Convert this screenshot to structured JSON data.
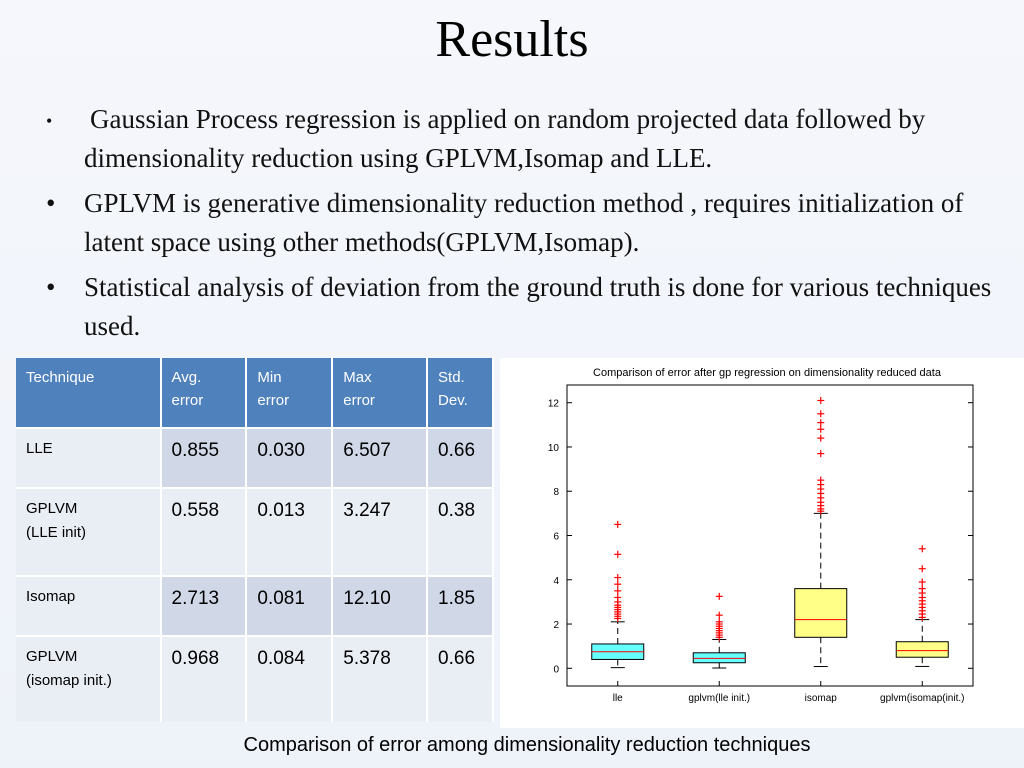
{
  "slide": {
    "title": "Results",
    "bullets": [
      "Gaussian Process regression is applied on random projected data followed by dimensionality reduction using GPLVM,Isomap and LLE.",
      "GPLVM is generative dimensionality reduction method , requires initialization of latent space using other methods(GPLVM,Isomap).",
      "Statistical analysis of deviation from the ground truth is done for various techniques used."
    ],
    "bullet_glyph": "•",
    "caption": "Comparison of error among dimensionality reduction techniques"
  },
  "table": {
    "headers": [
      [
        "Technique"
      ],
      [
        "Avg.",
        "error"
      ],
      [
        "Min",
        "error"
      ],
      [
        "Max",
        "error"
      ],
      [
        "Std.",
        "Dev."
      ]
    ],
    "rows": [
      {
        "technique": [
          "LLE"
        ],
        "avg": "0.855",
        "min": "0.030",
        "max": "6.507",
        "std": "0.66"
      },
      {
        "technique": [
          "GPLVM",
          "(LLE init)"
        ],
        "avg": "0.558",
        "min": "0.013",
        "max": "3.247",
        "std": "0.38"
      },
      {
        "technique": [
          "Isomap"
        ],
        "avg": "2.713",
        "min": "0.081",
        "max": "12.10",
        "std": "1.85"
      },
      {
        "technique": [
          "GPLVM",
          "(isomap init.)"
        ],
        "avg": "0.968",
        "min": "0.084",
        "max": "5.378",
        "std": "0.66"
      }
    ],
    "header_color": "#4f81bd"
  },
  "chart_data": {
    "type": "box",
    "title": "Comparison of error after gp regression on dimensionality reduced data",
    "xlabel": "",
    "ylabel": "",
    "ylim": [
      -0.8,
      12.8
    ],
    "yticks": [
      0,
      2,
      4,
      6,
      8,
      10,
      12
    ],
    "categories": [
      "lle",
      "gplvm(lle init.)",
      "isomap",
      "gplvm(isomap(init.)"
    ],
    "boxes": [
      {
        "label": "lle",
        "min": 0.03,
        "q1": 0.4,
        "median": 0.75,
        "q3": 1.1,
        "whisker_high": 2.1,
        "outliers": [
          2.25,
          2.35,
          2.45,
          2.55,
          2.65,
          2.75,
          2.85,
          3.0,
          3.2,
          3.5,
          3.8,
          4.1,
          5.15,
          6.5
        ],
        "color": "#66ffff"
      },
      {
        "label": "gplvm(lle init.)",
        "min": 0.013,
        "q1": 0.25,
        "median": 0.45,
        "q3": 0.7,
        "whisker_high": 1.3,
        "outliers": [
          1.4,
          1.5,
          1.6,
          1.7,
          1.8,
          1.9,
          2.0,
          2.1,
          2.4,
          3.25
        ],
        "color": "#66ffff"
      },
      {
        "label": "isomap",
        "min": 0.08,
        "q1": 1.4,
        "median": 2.2,
        "q3": 3.6,
        "whisker_high": 7.0,
        "outliers": [
          7.1,
          7.2,
          7.35,
          7.5,
          7.7,
          7.9,
          8.1,
          8.3,
          8.5,
          9.7,
          10.4,
          10.8,
          11.1,
          11.5,
          12.1
        ],
        "color": "#ffff88"
      },
      {
        "label": "gplvm(isomap(init.)",
        "min": 0.084,
        "q1": 0.5,
        "median": 0.8,
        "q3": 1.2,
        "whisker_high": 2.2,
        "outliers": [
          2.3,
          2.45,
          2.6,
          2.75,
          2.9,
          3.05,
          3.2,
          3.4,
          3.6,
          3.9,
          4.5,
          5.4
        ],
        "color": "#ffff88"
      }
    ],
    "median_color": "#ff0000",
    "outlier_color": "#ff0000",
    "outlier_marker": "+",
    "grid": false
  }
}
